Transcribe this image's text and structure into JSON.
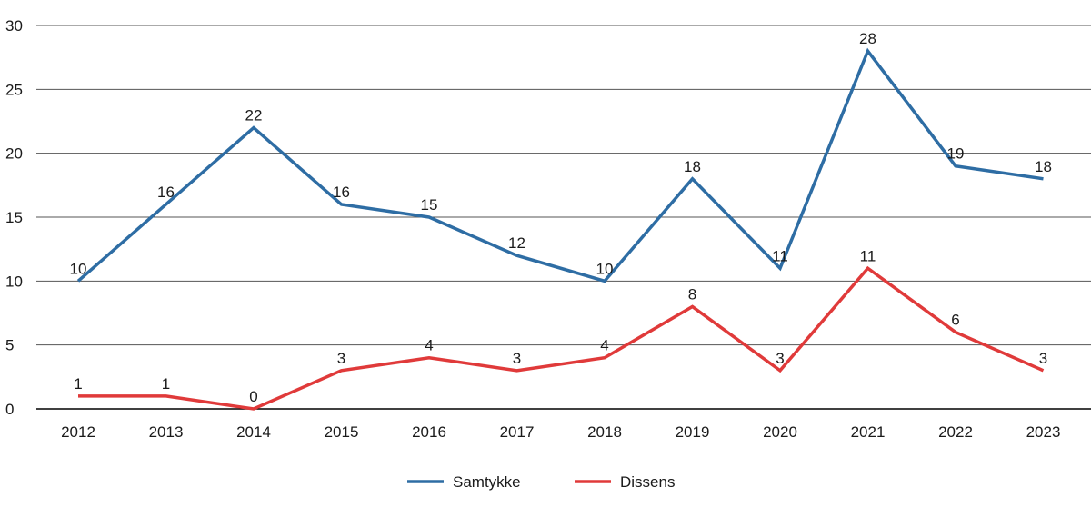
{
  "chart_data": {
    "type": "line",
    "title": "",
    "xlabel": "",
    "ylabel": "",
    "categories": [
      "2012",
      "2013",
      "2014",
      "2015",
      "2016",
      "2017",
      "2018",
      "2019",
      "2020",
      "2021",
      "2022",
      "2023"
    ],
    "ylim": [
      0,
      30
    ],
    "yticks": [
      "0",
      "5",
      "10",
      "15",
      "20",
      "25",
      "30"
    ],
    "grid": true,
    "legend_position": "bottom-center",
    "series": [
      {
        "name": "Samtykke",
        "color": "#2e6da4",
        "values": [
          10,
          16,
          22,
          16,
          15,
          12,
          10,
          18,
          11,
          28,
          19,
          18
        ],
        "labels": [
          "10",
          "16",
          "22",
          "16",
          "15",
          "12",
          "10",
          "18",
          "11",
          "28",
          "19",
          "18"
        ]
      },
      {
        "name": "Dissens",
        "color": "#e03a3a",
        "values": [
          1,
          1,
          0,
          3,
          4,
          3,
          4,
          8,
          3,
          11,
          6,
          3
        ],
        "labels": [
          "1",
          "1",
          "0",
          "3",
          "4",
          "3",
          "4",
          "8",
          "3",
          "11",
          "6",
          "3"
        ]
      }
    ]
  }
}
